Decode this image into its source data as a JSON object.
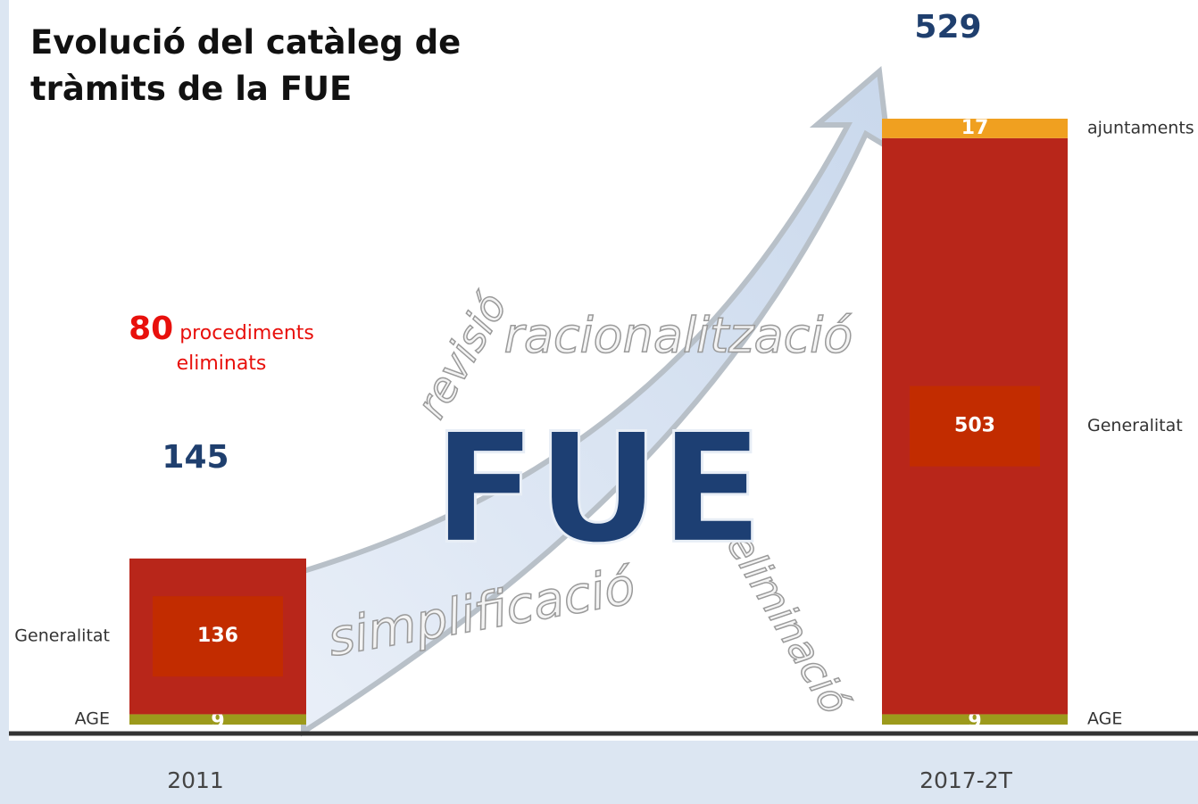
{
  "chart_data": {
    "type": "stacked-bar",
    "title": "Evolució del catàleg de tràmits de la FUE",
    "categories": [
      "2011",
      "2017-2T"
    ],
    "series": [
      {
        "name": "AGE",
        "color": "#9c9a1c",
        "values": [
          9,
          9
        ]
      },
      {
        "name": "Generalitat",
        "color": "#b8261a",
        "values": [
          136,
          503
        ]
      },
      {
        "name": "ajuntaments",
        "color": "#f0a020",
        "values": [
          null,
          17
        ]
      }
    ],
    "totals": [
      145,
      529
    ],
    "ylim": [
      0,
      529
    ],
    "annotation": {
      "value": 80,
      "text": "procediments eliminats"
    },
    "background_words": [
      "revisió",
      "racionalització",
      "simplificació",
      "eliminació"
    ],
    "logo": "FUE"
  }
}
